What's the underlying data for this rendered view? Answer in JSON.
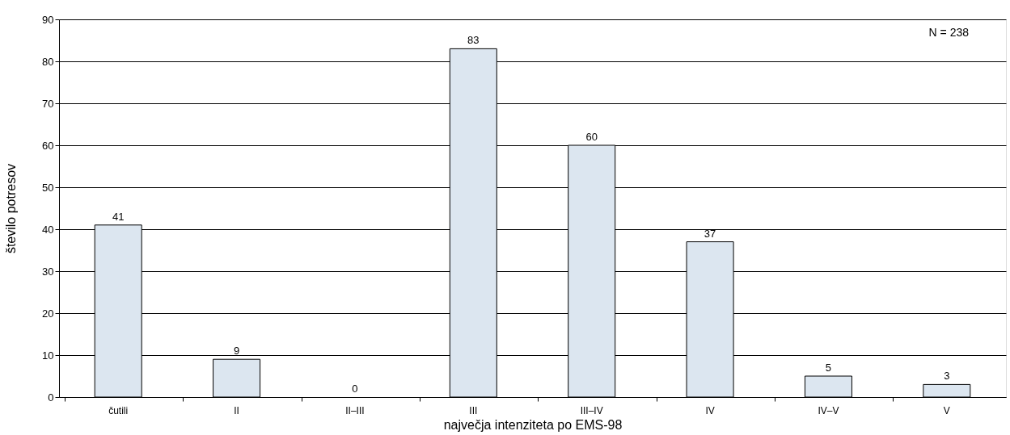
{
  "chart_data": {
    "type": "bar",
    "categories": [
      "čutili",
      "II",
      "II–III",
      "III",
      "III–IV",
      "IV",
      "IV–V",
      "V"
    ],
    "values": [
      41,
      9,
      0,
      83,
      60,
      37,
      5,
      3
    ],
    "color": "#dce6f0",
    "xlabel": "največja intenziteta po EMS-98",
    "ylabel": "število potresov",
    "ylim": [
      0,
      90
    ],
    "yticks": [
      0,
      10,
      20,
      30,
      40,
      50,
      60,
      70,
      80,
      90
    ],
    "grid": "y",
    "data_labels": true,
    "annotations": [
      "N = 238"
    ]
  }
}
